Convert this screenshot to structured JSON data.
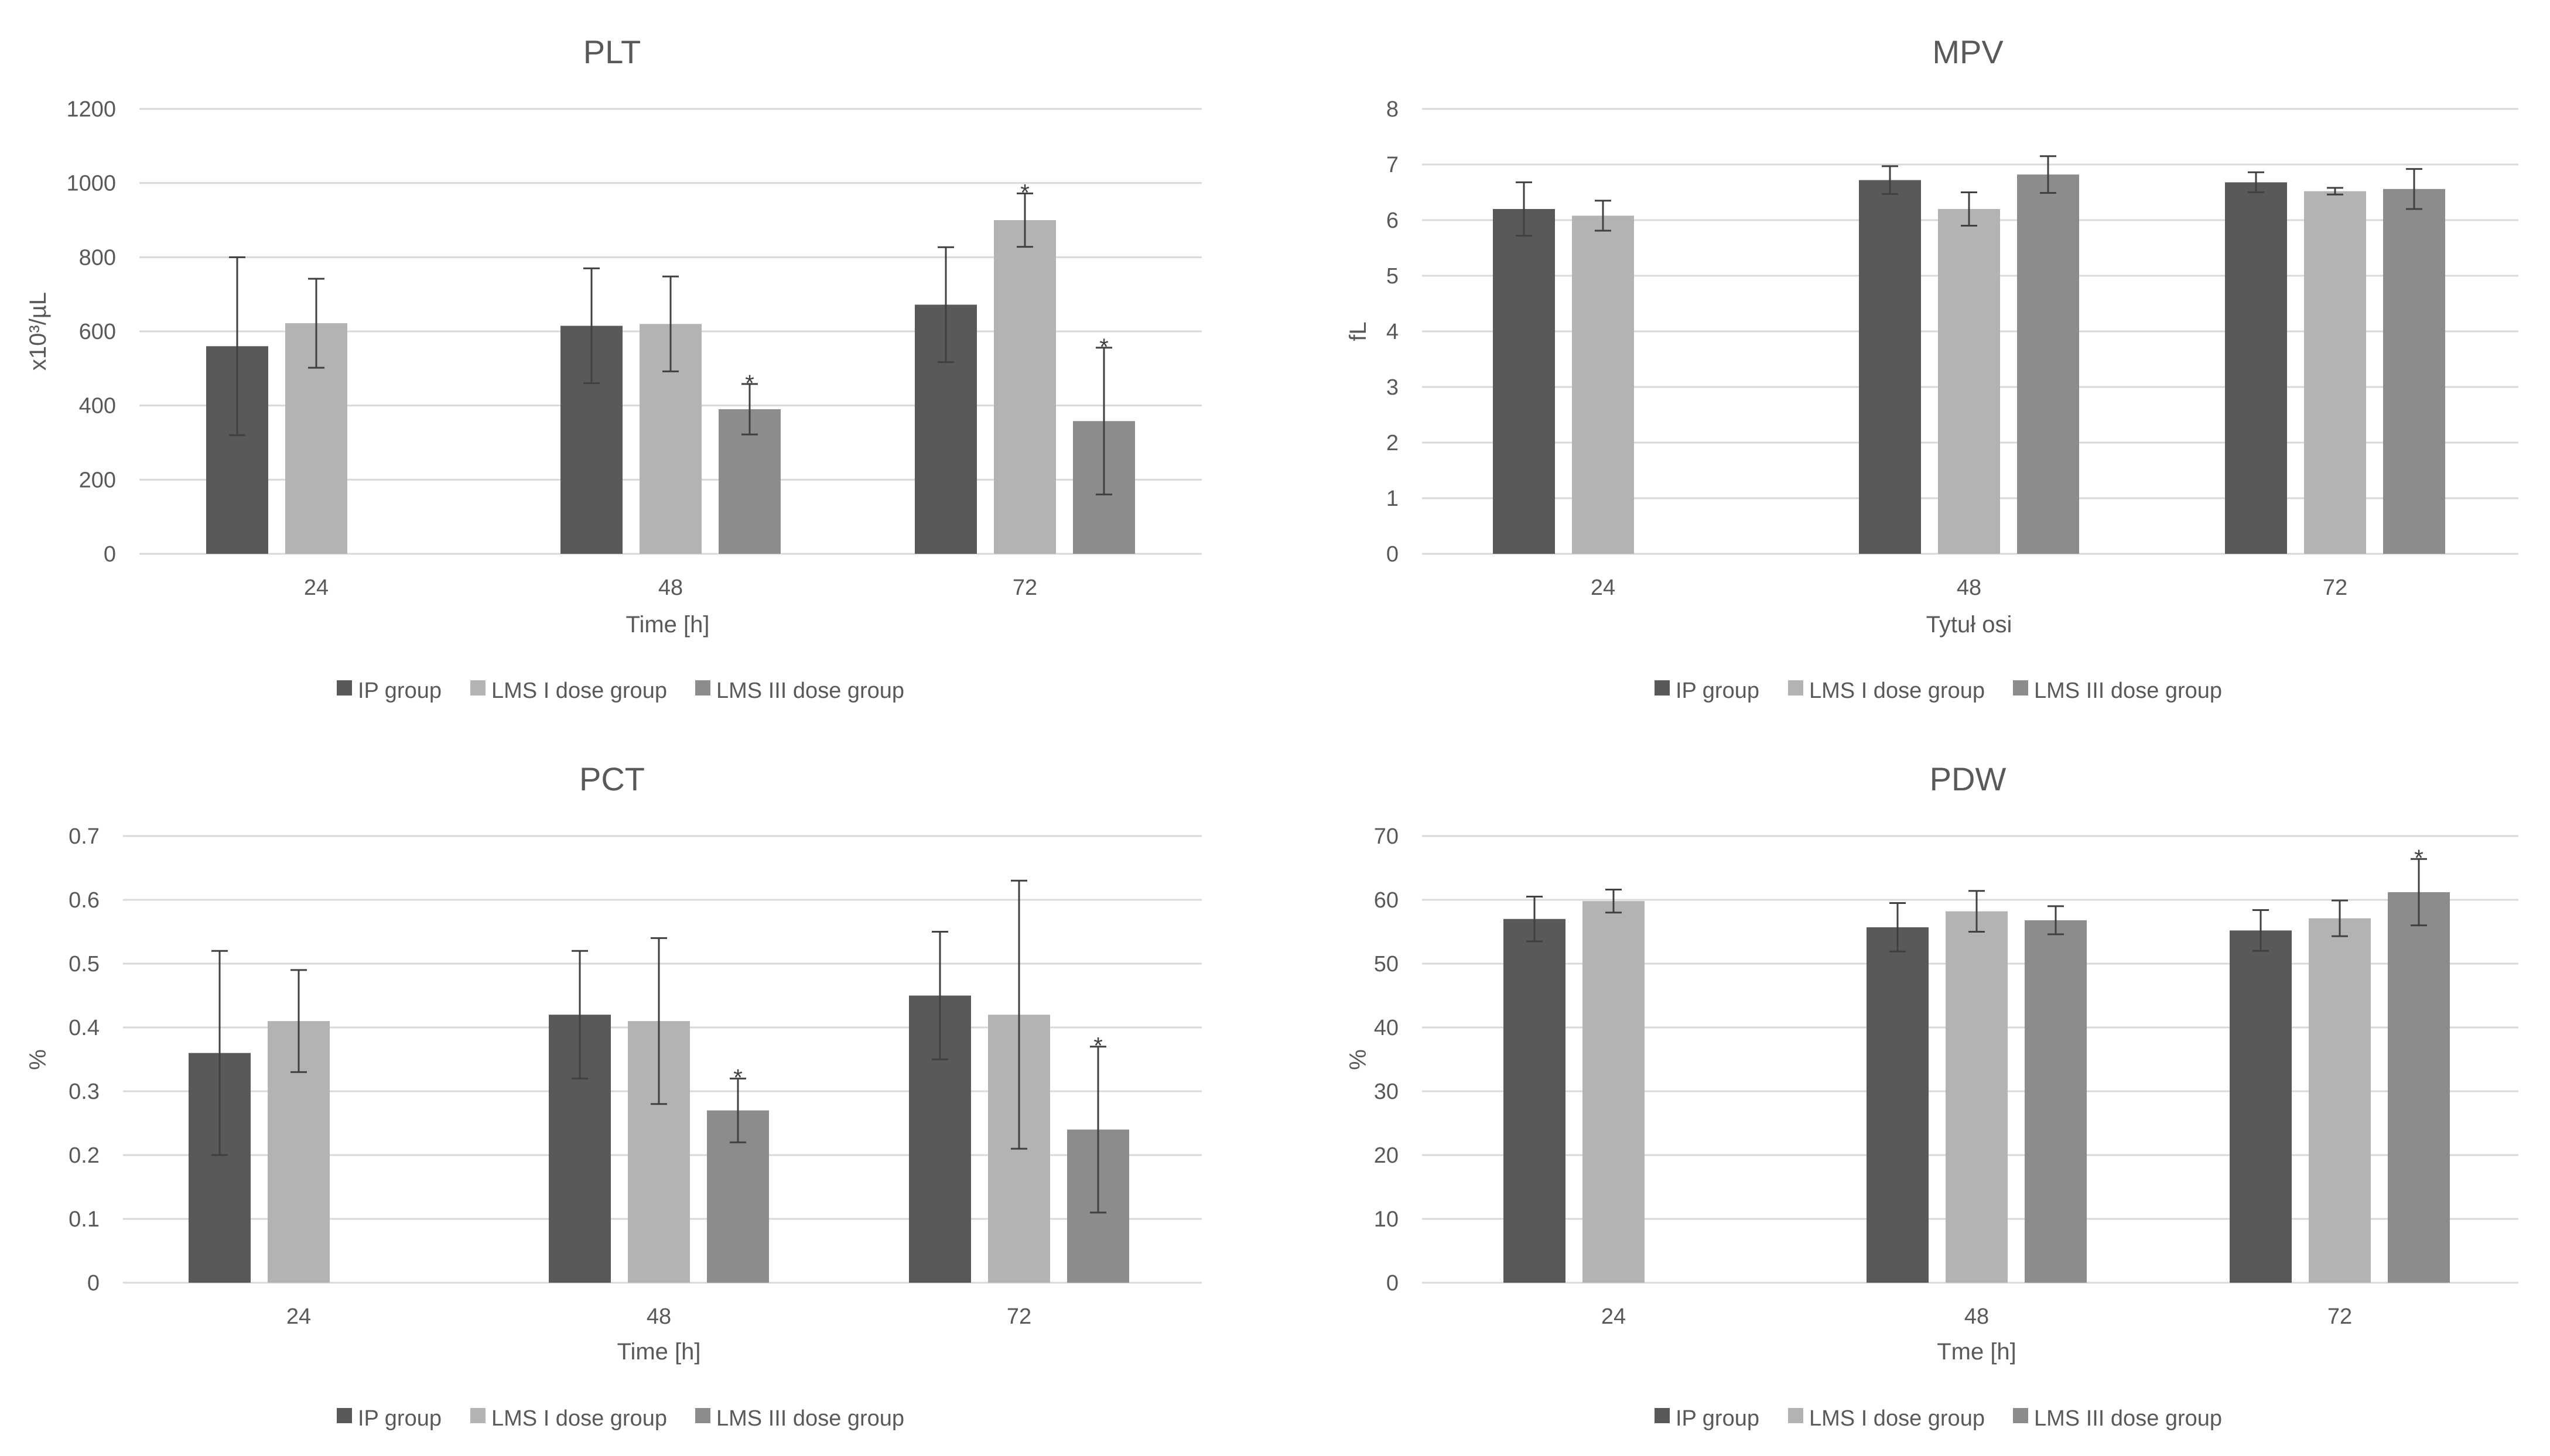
{
  "colors": {
    "ip": "#595959",
    "lms1": "#b3b3b3",
    "lms3": "#8c8c8c"
  },
  "chart_data": [
    {
      "type": "bar",
      "title": "PLT",
      "xlabel": "Time [h]",
      "ylabel": "x10³/µL",
      "ylim": [
        0,
        1200
      ],
      "yticks": [
        "0",
        "200",
        "400",
        "600",
        "800",
        "1000",
        "1200"
      ],
      "categories": [
        "24",
        "48",
        "72"
      ],
      "legend": "bottom",
      "series": [
        {
          "name": "IP group",
          "values": [
            560,
            615,
            672
          ],
          "errors": [
            240,
            155,
            155
          ],
          "significant": [
            false,
            false,
            false
          ]
        },
        {
          "name": "LMS I dose group",
          "values": [
            622,
            620,
            900
          ],
          "errors": [
            120,
            128,
            72
          ],
          "significant": [
            false,
            false,
            true
          ]
        },
        {
          "name": "LMS III dose group",
          "values": [
            null,
            390,
            358
          ],
          "errors": [
            null,
            68,
            198
          ],
          "significant": [
            false,
            true,
            true
          ]
        }
      ]
    },
    {
      "type": "bar",
      "title": "MPV",
      "xlabel": "Tytuł osi",
      "ylabel": "fL",
      "ylim": [
        0,
        8
      ],
      "yticks": [
        "0",
        "1",
        "2",
        "3",
        "4",
        "5",
        "6",
        "7",
        "8"
      ],
      "categories": [
        "24",
        "48",
        "72"
      ],
      "legend": "bottom",
      "series": [
        {
          "name": "IP group",
          "values": [
            6.2,
            6.72,
            6.68
          ],
          "errors": [
            0.48,
            0.25,
            0.18
          ],
          "significant": [
            false,
            false,
            false
          ]
        },
        {
          "name": "LMS I dose group",
          "values": [
            6.08,
            6.2,
            6.52
          ],
          "errors": [
            0.27,
            0.3,
            0.06
          ],
          "significant": [
            false,
            false,
            false
          ]
        },
        {
          "name": "LMS III dose group",
          "values": [
            null,
            6.82,
            6.56
          ],
          "errors": [
            null,
            0.33,
            0.36
          ],
          "significant": [
            false,
            false,
            false
          ]
        }
      ]
    },
    {
      "type": "bar",
      "title": "PCT",
      "xlabel": "Time [h]",
      "ylabel": "%",
      "ylim": [
        0,
        0.7
      ],
      "yticks": [
        "0",
        "0.1",
        "0.2",
        "0.3",
        "0.4",
        "0.5",
        "0.6",
        "0.7"
      ],
      "categories": [
        "24",
        "48",
        "72"
      ],
      "legend": "bottom",
      "series": [
        {
          "name": "IP group",
          "values": [
            0.36,
            0.42,
            0.45
          ],
          "errors": [
            0.16,
            0.1,
            0.1
          ],
          "significant": [
            false,
            false,
            false
          ]
        },
        {
          "name": "LMS I dose group",
          "values": [
            0.41,
            0.41,
            0.42
          ],
          "errors": [
            0.08,
            0.13,
            0.21
          ],
          "significant": [
            false,
            false,
            false
          ]
        },
        {
          "name": "LMS III dose group",
          "values": [
            null,
            0.27,
            0.24
          ],
          "errors": [
            null,
            0.05,
            0.13
          ],
          "significant": [
            false,
            true,
            true
          ]
        }
      ]
    },
    {
      "type": "bar",
      "title": "PDW",
      "xlabel": "Tme [h]",
      "ylabel": "%",
      "ylim": [
        0,
        70
      ],
      "yticks": [
        "0",
        "10",
        "20",
        "30",
        "40",
        "50",
        "60",
        "70"
      ],
      "categories": [
        "24",
        "48",
        "72"
      ],
      "legend": "bottom",
      "series": [
        {
          "name": "IP group",
          "values": [
            57,
            55.7,
            55.2
          ],
          "errors": [
            3.5,
            3.8,
            3.2
          ],
          "significant": [
            false,
            false,
            false
          ]
        },
        {
          "name": "LMS I dose group",
          "values": [
            59.8,
            58.2,
            57.1
          ],
          "errors": [
            1.8,
            3.2,
            2.8
          ],
          "significant": [
            false,
            false,
            false
          ]
        },
        {
          "name": "LMS III dose group",
          "values": [
            null,
            56.8,
            61.2
          ],
          "errors": [
            null,
            2.2,
            5.2
          ],
          "significant": [
            false,
            false,
            true
          ]
        }
      ]
    }
  ],
  "significance_marker": "*"
}
